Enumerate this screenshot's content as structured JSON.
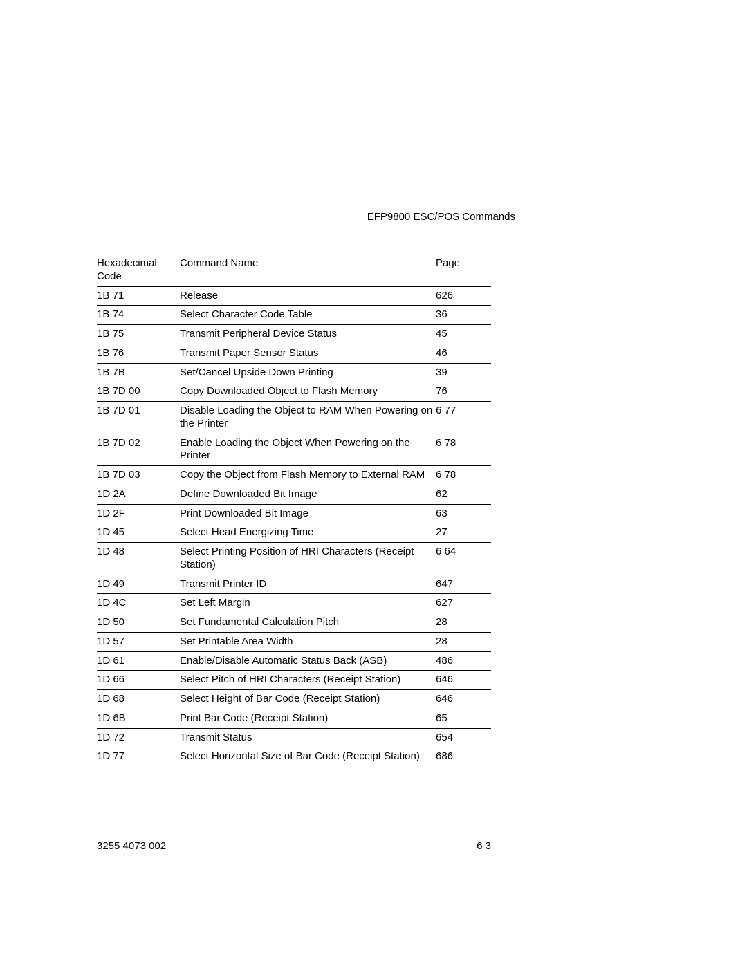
{
  "header": {
    "title": "EFP9800 ESC/POS Commands"
  },
  "table": {
    "columns": {
      "code": "Hexadecimal Code",
      "name": "Command Name",
      "page": "Page"
    },
    "rows": [
      {
        "code": "1B 71",
        "name": "Release",
        "page": "626"
      },
      {
        "code": "1B 74",
        "name": "Select Character Code Table",
        "page": "36"
      },
      {
        "code": "1B 75",
        "name": "Transmit Peripheral Device Status",
        "page": "45"
      },
      {
        "code": "1B 76",
        "name": "Transmit Paper Sensor Status",
        "page": "46"
      },
      {
        "code": "1B 7B",
        "name": "Set/Cancel Upside Down Printing",
        "page": "39"
      },
      {
        "code": "1B 7D 00",
        "name": "Copy Downloaded Object to Flash Memory",
        "page": "76"
      },
      {
        "code": "1B 7D 01",
        "name": "Disable Loading the Object to RAM When Powering on the Printer",
        "page": "6 77"
      },
      {
        "code": "1B 7D 02",
        "name": "Enable Loading the Object When Powering on the Printer",
        "page": "6 78"
      },
      {
        "code": "1B 7D 03",
        "name": "Copy the Object from Flash Memory to External RAM",
        "page": "6 78"
      },
      {
        "code": "1D 2A",
        "name": "Define Downloaded Bit Image",
        "page": "62"
      },
      {
        "code": "1D 2F",
        "name": "Print Downloaded Bit Image",
        "page": "63"
      },
      {
        "code": "1D 45",
        "name": "Select Head Energizing Time",
        "page": "27"
      },
      {
        "code": "1D 48",
        "name": "Select Printing Position of HRI Characters (Receipt Station)",
        "page": "6 64"
      },
      {
        "code": "1D 49",
        "name": "Transmit Printer ID",
        "page": "647"
      },
      {
        "code": "1D 4C",
        "name": "Set Left Margin",
        "page": "627"
      },
      {
        "code": "1D 50",
        "name": "Set Fundamental Calculation Pitch",
        "page": "28"
      },
      {
        "code": "1D 57",
        "name": "Set Printable Area Width",
        "page": "28"
      },
      {
        "code": "1D 61",
        "name": "Enable/Disable Automatic Status Back (ASB)",
        "page": "486"
      },
      {
        "code": "1D 66",
        "name": "Select Pitch of HRI Characters (Receipt Station)",
        "page": "646"
      },
      {
        "code": "1D 68",
        "name": "Select Height of Bar Code (Receipt Station)",
        "page": "646"
      },
      {
        "code": "1D 6B",
        "name": "Print Bar Code (Receipt Station)",
        "page": "65"
      },
      {
        "code": "1D 72",
        "name": "Transmit Status",
        "page": "654"
      },
      {
        "code": "1D 77",
        "name": "Select Horizontal Size of Bar Code (Receipt Station)",
        "page": "686"
      }
    ]
  },
  "footer": {
    "left": "3255 4073  002",
    "right": "6 3"
  }
}
